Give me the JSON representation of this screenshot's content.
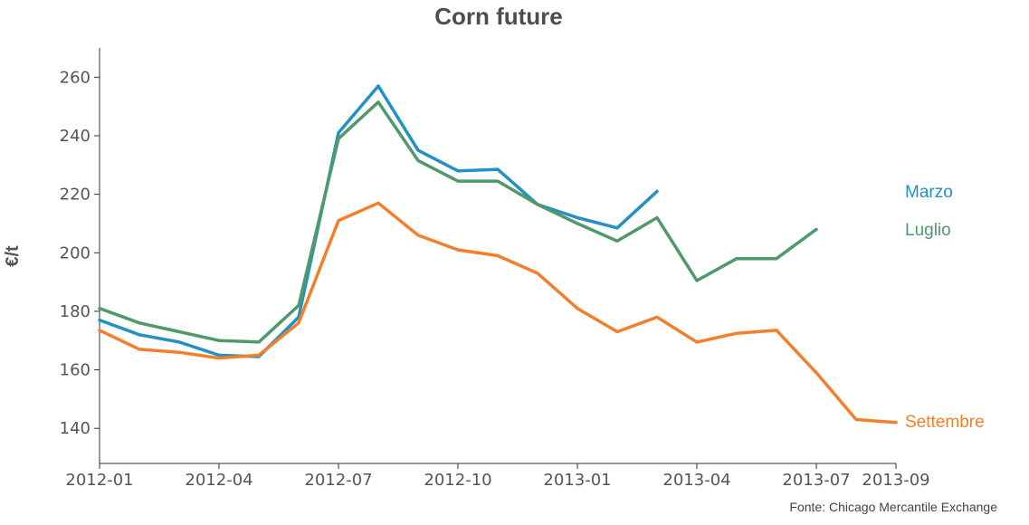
{
  "chart_data": {
    "type": "line",
    "title": "Corn future",
    "xlabel": "",
    "ylabel": "€/t",
    "source": "Fonte: Chicago Mercantile Exchange",
    "x_ticks": [
      "2012-01",
      "2012-04",
      "2012-07",
      "2012-10",
      "2013-01",
      "2013-04",
      "2013-07",
      "2013-09"
    ],
    "y_ticks": [
      140,
      160,
      180,
      200,
      220,
      240,
      260
    ],
    "xlim": [
      "2012-01",
      "2013-09"
    ],
    "ylim": [
      128,
      270
    ],
    "grid": false,
    "legend": "inline labels at line ends (right)",
    "series": [
      {
        "name": "Marzo",
        "color": "#2490c3",
        "points": [
          [
            "2012-01",
            177
          ],
          [
            "2012-02",
            172
          ],
          [
            "2012-03",
            169.5
          ],
          [
            "2012-04",
            165
          ],
          [
            "2012-05",
            164.5
          ],
          [
            "2012-06",
            178
          ],
          [
            "2012-07",
            241
          ],
          [
            "2012-08",
            257
          ],
          [
            "2012-09",
            235
          ],
          [
            "2012-10",
            228
          ],
          [
            "2012-11",
            228.5
          ],
          [
            "2012-12",
            216.5
          ],
          [
            "2013-01",
            212
          ],
          [
            "2013-02",
            208.5
          ],
          [
            "2013-03",
            221
          ]
        ]
      },
      {
        "name": "Luglio",
        "color": "#4e9a6a",
        "points": [
          [
            "2012-01",
            181
          ],
          [
            "2012-02",
            176
          ],
          [
            "2012-03",
            173
          ],
          [
            "2012-04",
            170
          ],
          [
            "2012-05",
            169.5
          ],
          [
            "2012-06",
            182
          ],
          [
            "2012-07",
            239
          ],
          [
            "2012-08",
            251.5
          ],
          [
            "2012-09",
            231.5
          ],
          [
            "2012-10",
            224.5
          ],
          [
            "2012-11",
            224.5
          ],
          [
            "2012-12",
            216.5
          ],
          [
            "2013-01",
            210
          ],
          [
            "2013-02",
            204
          ],
          [
            "2013-03",
            212
          ],
          [
            "2013-04",
            190.5
          ],
          [
            "2013-05",
            198
          ],
          [
            "2013-06",
            198
          ],
          [
            "2013-07",
            208
          ]
        ]
      },
      {
        "name": "Settembre",
        "color": "#f47f2a",
        "points": [
          [
            "2012-01",
            173.5
          ],
          [
            "2012-02",
            167
          ],
          [
            "2012-03",
            166
          ],
          [
            "2012-04",
            164
          ],
          [
            "2012-05",
            165
          ],
          [
            "2012-06",
            176
          ],
          [
            "2012-07",
            211
          ],
          [
            "2012-08",
            217
          ],
          [
            "2012-09",
            206
          ],
          [
            "2012-10",
            201
          ],
          [
            "2012-11",
            199
          ],
          [
            "2012-12",
            193
          ],
          [
            "2013-01",
            181
          ],
          [
            "2013-02",
            173
          ],
          [
            "2013-03",
            178
          ],
          [
            "2013-04",
            169.5
          ],
          [
            "2013-05",
            172.5
          ],
          [
            "2013-06",
            173.5
          ],
          [
            "2013-07",
            159
          ],
          [
            "2013-08",
            143
          ],
          [
            "2013-09",
            142
          ]
        ]
      }
    ]
  }
}
